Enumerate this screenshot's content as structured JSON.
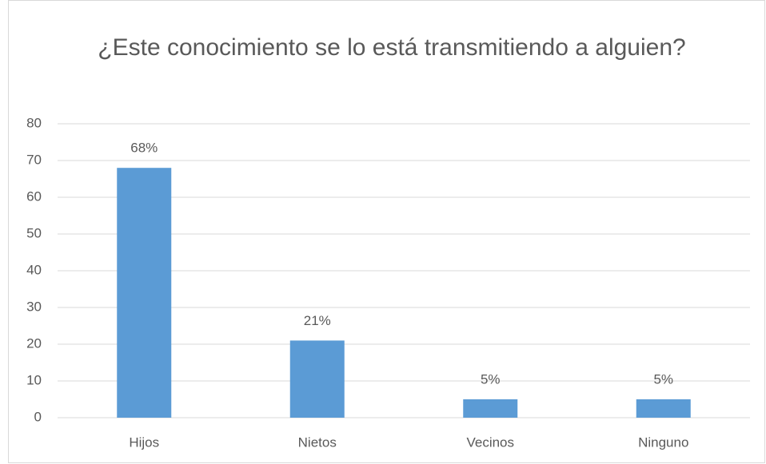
{
  "chart_data": {
    "type": "bar",
    "title": "¿Este conocimiento se lo está transmitiendo a alguien?",
    "categories": [
      "Hijos",
      "Nietos",
      "Vecinos",
      "Ninguno"
    ],
    "values": [
      68,
      21,
      5,
      5
    ],
    "value_labels": [
      "68%",
      "21%",
      "5%",
      "5%"
    ],
    "color": "#5b9bd5",
    "ylim": [
      0,
      80
    ],
    "yticks": [
      0,
      10,
      20,
      30,
      40,
      50,
      60,
      70,
      80
    ],
    "grid": true
  }
}
